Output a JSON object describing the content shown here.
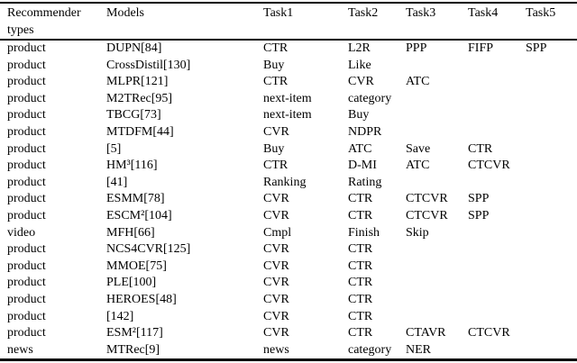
{
  "table": {
    "columns": [
      "Recommender types",
      "Models",
      "Task1",
      "Task2",
      "Task3",
      "Task4",
      "Task5"
    ],
    "rows": [
      {
        "type": "product",
        "model": "DUPN[84]",
        "tasks": [
          "CTR",
          "L2R",
          "PPP",
          "FIFP",
          "SPP"
        ]
      },
      {
        "type": "product",
        "model": "CrossDistil[130]",
        "tasks": [
          "Buy",
          "Like",
          "",
          "",
          ""
        ]
      },
      {
        "type": "product",
        "model": "MLPR[121]",
        "tasks": [
          "CTR",
          "CVR",
          "ATC",
          "",
          ""
        ]
      },
      {
        "type": "product",
        "model": "M2TRec[95]",
        "tasks": [
          "next-item",
          "category",
          "",
          "",
          ""
        ]
      },
      {
        "type": "product",
        "model": "TBCG[73]",
        "tasks": [
          "next-item",
          "Buy",
          "",
          "",
          ""
        ]
      },
      {
        "type": "product",
        "model": "MTDFM[44]",
        "tasks": [
          "CVR",
          "NDPR",
          "",
          "",
          ""
        ]
      },
      {
        "type": "product",
        "model": "[5]",
        "tasks": [
          "Buy",
          "ATC",
          "Save",
          "CTR",
          ""
        ]
      },
      {
        "type": "product",
        "model": "HM³[116]",
        "tasks": [
          "CTR",
          "D-MI",
          "ATC",
          "CTCVR",
          ""
        ]
      },
      {
        "type": "product",
        "model": "[41]",
        "tasks": [
          "Ranking",
          "Rating",
          "",
          "",
          ""
        ]
      },
      {
        "type": "product",
        "model": "ESMM[78]",
        "tasks": [
          "CVR",
          "CTR",
          "CTCVR",
          "SPP",
          ""
        ]
      },
      {
        "type": "product",
        "model": "ESCM²[104]",
        "tasks": [
          "CVR",
          "CTR",
          "CTCVR",
          "SPP",
          ""
        ]
      },
      {
        "type": "video",
        "model": "MFH[66]",
        "tasks": [
          "Cmpl",
          "Finish",
          "Skip",
          "",
          ""
        ]
      },
      {
        "type": "product",
        "model": "NCS4CVR[125]",
        "tasks": [
          "CVR",
          "CTR",
          "",
          "",
          ""
        ]
      },
      {
        "type": "product",
        "model": "MMOE[75]",
        "tasks": [
          "CVR",
          "CTR",
          "",
          "",
          ""
        ]
      },
      {
        "type": "product",
        "model": "PLE[100]",
        "tasks": [
          "CVR",
          "CTR",
          "",
          "",
          ""
        ]
      },
      {
        "type": "product",
        "model": "HEROES[48]",
        "tasks": [
          "CVR",
          "CTR",
          "",
          "",
          ""
        ]
      },
      {
        "type": "product",
        "model": "[142]",
        "tasks": [
          "CVR",
          "CTR",
          "",
          "",
          ""
        ]
      },
      {
        "type": "product",
        "model": "ESM²[117]",
        "tasks": [
          "CVR",
          "CTR",
          "CTAVR",
          "CTCVR",
          ""
        ]
      },
      {
        "type": "news",
        "model": "MTRec[9]",
        "tasks": [
          "news",
          "category",
          "NER",
          "",
          ""
        ]
      }
    ]
  }
}
